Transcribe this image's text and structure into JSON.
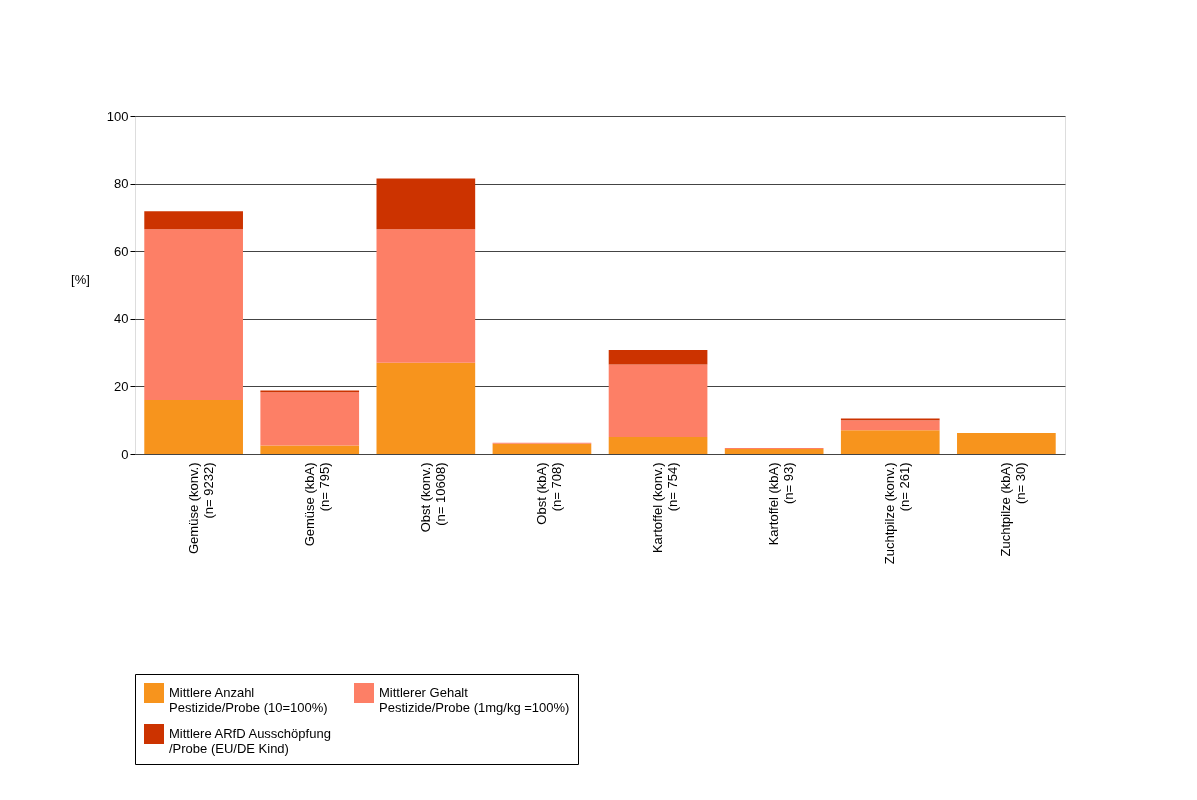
{
  "chart_data": {
    "type": "bar",
    "stacked": true,
    "ylabel": "[%]",
    "categories": [
      "Gemüse (konv.)\n(n= 9232)",
      "Gemüse (kbA)\n(n= 795)",
      "Obst (konv.)\n(n= 10608)",
      "Obst (kbA)\n(n= 708)",
      "Kartoffel (konv.)\n(n= 754)",
      "Kartoffel (kbA)\n(n= 93)",
      "Zuchtpilze (konv.)\n(n= 261)",
      "Zuchtpilze (kbA)\n(n= 30)"
    ],
    "series": [
      {
        "name": "Mittlere Anzahl\nPestizide/Probe (10=100%)",
        "color": "#f7941d",
        "values": [
          16,
          2.5,
          27,
          3,
          5,
          1.5,
          7,
          6.2
        ]
      },
      {
        "name": "Mittlerer Gehalt\nPestizide/Probe (1mg/kg =100%)",
        "color": "#fd7f66",
        "values": [
          50.5,
          15.8,
          39.5,
          0.3,
          21.5,
          0.3,
          3,
          0
        ]
      },
      {
        "name": "Mittlere ARfD Ausschöpfung\n/Probe (EU/DE Kind)",
        "color": "#cc3300",
        "values": [
          5.3,
          0.5,
          15,
          0,
          4.3,
          0,
          0.5,
          0
        ]
      }
    ],
    "ylim": [
      0,
      100
    ],
    "yticks": [
      0,
      20,
      40,
      60,
      80,
      100
    ],
    "grid": "y",
    "legend": "bottom"
  }
}
